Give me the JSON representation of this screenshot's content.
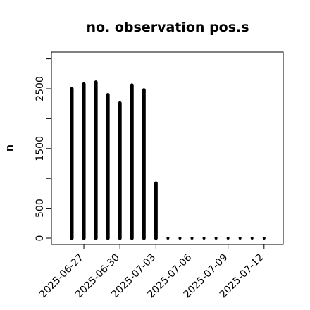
{
  "chart_data": {
    "type": "bar",
    "title": "no. observation pos.s",
    "xlabel": "",
    "ylabel": "n",
    "ylim": [
      -100,
      3000
    ],
    "yticks": [
      0,
      500,
      1500,
      2500
    ],
    "categories": [
      "2025-06-26",
      "2025-06-27",
      "2025-06-28",
      "2025-06-29",
      "2025-06-30",
      "2025-07-01",
      "2025-07-02",
      "2025-07-03",
      "2025-07-04",
      "2025-07-05",
      "2025-07-06",
      "2025-07-07",
      "2025-07-08",
      "2025-07-09",
      "2025-07-10",
      "2025-07-11",
      "2025-07-12"
    ],
    "values": [
      2500,
      2580,
      2610,
      2400,
      2260,
      2560,
      2480,
      920,
      0,
      0,
      0,
      0,
      0,
      0,
      0,
      0,
      0
    ],
    "xtick_labels": [
      "2025-06-27",
      "2025-06-30",
      "2025-07-03",
      "2025-07-06",
      "2025-07-09",
      "2025-07-12"
    ],
    "xtick_colors": [
      "#000000",
      "#000000",
      "#228b22",
      "#000000",
      "#000000",
      "#000000"
    ],
    "bar_color": "#000000",
    "grid": false
  }
}
